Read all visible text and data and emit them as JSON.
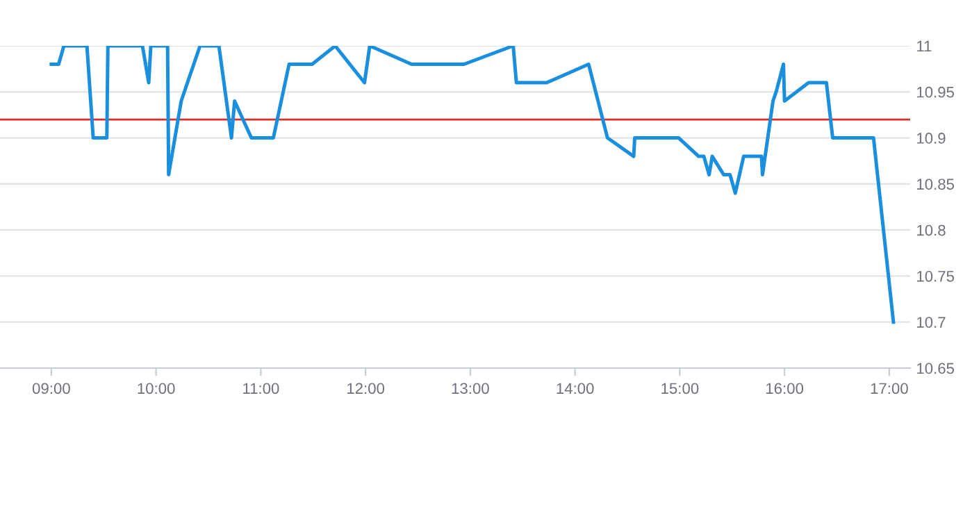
{
  "chart_data": {
    "type": "line",
    "x": [
      9.0,
      9.07,
      9.12,
      9.34,
      9.4,
      9.53,
      9.54,
      9.87,
      9.93,
      9.95,
      10.11,
      10.12,
      10.24,
      10.42,
      10.6,
      10.72,
      10.75,
      10.91,
      11.12,
      11.27,
      11.49,
      11.71,
      11.99,
      12.04,
      12.44,
      12.94,
      13.41,
      13.44,
      13.73,
      14.13,
      14.31,
      14.56,
      14.57,
      14.99,
      15.18,
      15.23,
      15.28,
      15.31,
      15.42,
      15.48,
      15.53,
      15.57,
      15.61,
      15.78,
      15.79,
      15.89,
      15.92,
      15.99,
      16.0,
      16.23,
      16.4,
      16.46,
      16.85,
      17.04
    ],
    "series": [
      {
        "color": "#1a8fdd",
        "values": [
          10.98,
          10.98,
          11,
          11,
          10.9,
          10.9,
          11,
          11,
          10.96,
          11,
          11,
          10.86,
          10.94,
          11,
          11,
          10.9,
          10.94,
          10.9,
          10.9,
          10.98,
          10.98,
          11,
          10.96,
          11,
          10.98,
          10.98,
          11,
          10.96,
          10.96,
          10.98,
          10.9,
          10.88,
          10.9,
          10.9,
          10.88,
          10.88,
          10.86,
          10.88,
          10.86,
          10.86,
          10.84,
          10.86,
          10.88,
          10.88,
          10.86,
          10.94,
          10.95,
          10.98,
          10.94,
          10.96,
          10.96,
          10.9,
          10.9,
          10.7
        ]
      }
    ],
    "xlim": [
      8.51,
      17.2
    ],
    "xticks": [
      {
        "value": 9,
        "label": "09:00"
      },
      {
        "value": 10,
        "label": "10:00"
      },
      {
        "value": 11,
        "label": "11:00"
      },
      {
        "value": 12,
        "label": "12:00"
      },
      {
        "value": 13,
        "label": "13:00"
      },
      {
        "value": 14,
        "label": "14:00"
      },
      {
        "value": 15,
        "label": "15:00"
      },
      {
        "value": 16,
        "label": "16:00"
      },
      {
        "value": 17,
        "label": "17:00"
      }
    ],
    "ylim": [
      10.65,
      11.0
    ],
    "yticks": [
      10.65,
      10.7,
      10.75,
      10.8,
      10.85,
      10.9,
      10.95,
      11
    ],
    "ref_lines": [
      {
        "axis": "y",
        "value": 10.92,
        "color": "#d9302c"
      }
    ],
    "grid": "y",
    "legend": false,
    "marker": "none",
    "line_style": "solid"
  }
}
